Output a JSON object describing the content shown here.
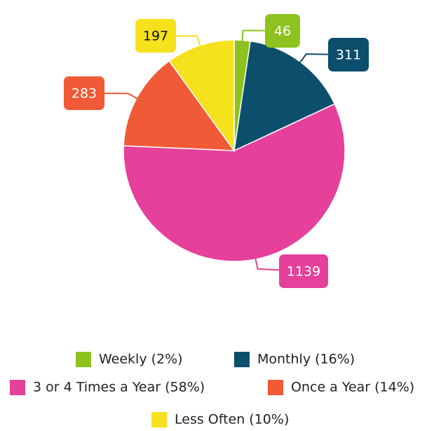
{
  "chart_data": {
    "type": "pie",
    "categories": [
      "Weekly (2%)",
      "Monthly (16%)",
      "3 or 4 Times a Year (58%)",
      "Once a Year (14%)",
      "Less Often (10%)"
    ],
    "values": [
      46,
      311,
      1139,
      283,
      197
    ],
    "colors": [
      "#8dc21f",
      "#0b4f6c",
      "#e5409a",
      "#f05a36",
      "#f5e11c"
    ],
    "legend": "bottom"
  }
}
